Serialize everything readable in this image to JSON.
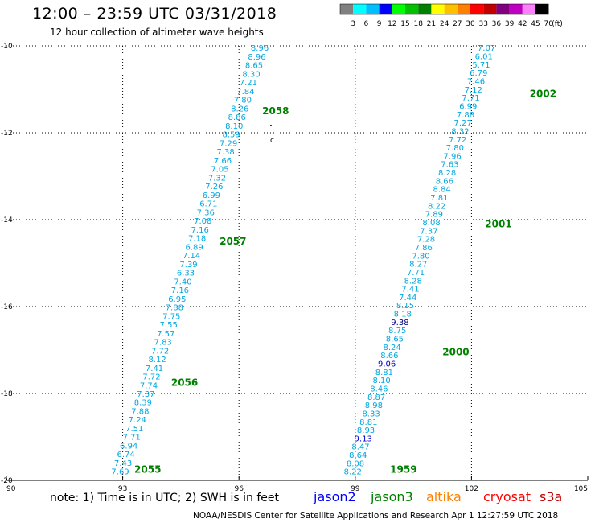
{
  "header": {
    "title": "12:00 – 23:59 UTC 03/31/2018",
    "subtitle": "12 hour collection of altimeter wave heights"
  },
  "colorbar": {
    "unit": "(ft)",
    "ticks": [
      "3",
      "6",
      "9",
      "12",
      "15",
      "18",
      "21",
      "24",
      "27",
      "30",
      "33",
      "36",
      "39",
      "42",
      "45",
      "70"
    ],
    "colors": [
      "#808080",
      "#00ffff",
      "#00bfff",
      "#0000ff",
      "#00ff00",
      "#00c000",
      "#008000",
      "#ffff00",
      "#ffc000",
      "#ff8000",
      "#ff0000",
      "#c00000",
      "#800080",
      "#c000c0",
      "#ff80ff",
      "#000000"
    ]
  },
  "note": "note: 1) Time is in UTC; 2) SWH is in feet",
  "satellites": [
    {
      "name": "jason2",
      "color": "#0000ff"
    },
    {
      "name": "jason3",
      "color": "#008000"
    },
    {
      "name": "altika",
      "color": "#ff8000"
    },
    {
      "name": "cryosat",
      "color": "#ff0000"
    },
    {
      "name": "s3a",
      "color": "#c00000"
    }
  ],
  "footer": "NOAA/NESDIS Center for Satellite Applications and Research    Apr  1 12:27:59 UTC 2018",
  "chart_data": {
    "type": "scatter",
    "xlim": [
      90,
      105
    ],
    "ylim": [
      -20,
      -10
    ],
    "x_ticks": [
      90,
      93,
      96,
      99,
      102,
      105
    ],
    "y_ticks": [
      -10,
      -12,
      -14,
      -16,
      -18,
      -20
    ],
    "x_tick_labels": [
      "90",
      "93",
      "96",
      "99",
      "102",
      "105"
    ],
    "y_tick_labels": [
      "-10",
      "-12",
      "-14",
      "-16",
      "-18",
      "-20"
    ],
    "grid": true,
    "tracks": [
      {
        "lon_start": 92.75,
        "lat_start": -19.8,
        "lon_end": 96.35,
        "lat_end": -10.05,
        "values": [
          "7.69",
          "7.43",
          "6.74",
          "6.94",
          "7.71",
          "7.51",
          "7.24",
          "7.88",
          "8.39",
          "7.37",
          "7.74",
          "7.72",
          "7.41",
          "8.12",
          "7.72",
          "7.83",
          "7.57",
          "7.55",
          "7.75",
          "7.88",
          "6.95",
          "7.16",
          "7.40",
          "6.33",
          "7.39",
          "7.14",
          "6.89",
          "7.18",
          "7.16",
          "7.08",
          "7.36",
          "6.71",
          "6.99",
          "7.26",
          "7.32",
          "7.05",
          "7.66",
          "7.38",
          "7.29",
          "8.59",
          "8.10",
          "8.86",
          "8.26",
          "7.80",
          "7.84",
          "7.21",
          "8.30",
          "8.65",
          "8.96",
          "8.96"
        ],
        "value_colors": {},
        "time_labels": [
          {
            "text": "2055",
            "lat": -19.75,
            "lon": 93.3
          },
          {
            "text": "2056",
            "lat": -17.75,
            "lon": 94.25
          },
          {
            "text": "2057",
            "lat": -14.5,
            "lon": 95.5
          },
          {
            "text": "2058",
            "lat": -11.5,
            "lon": 96.6
          }
        ]
      },
      {
        "lon_start": 98.75,
        "lat_start": -19.8,
        "lon_end": 102.2,
        "lat_end": -10.05,
        "values": [
          "8.22",
          "8.08",
          "8.64",
          "8.47",
          "9.13",
          "8.93",
          "8.81",
          "8.33",
          "8.98",
          "8.87",
          "8.46",
          "8.10",
          "8.81",
          "9.06",
          "8.66",
          "8.24",
          "8.65",
          "8.75",
          "9.38",
          "8.18",
          "8.15",
          "7.44",
          "7.41",
          "8.28",
          "7.71",
          "8.27",
          "7.80",
          "7.86",
          "7.28",
          "7.37",
          "8.08",
          "7.89",
          "8.22",
          "7.81",
          "8.84",
          "8.66",
          "8.28",
          "7.63",
          "7.96",
          "7.80",
          "7.72",
          "8.32",
          "7.27",
          "7.88",
          "6.99",
          "7.71",
          "7.12",
          "7.46",
          "6.79",
          "5.71",
          "6.01",
          "7.07"
        ],
        "value_colors": {
          "4": "#0000cc",
          "13": "#0000cc",
          "18": "#000080"
        },
        "time_labels": [
          {
            "text": "1959",
            "lat": -19.75,
            "lon": 99.9
          },
          {
            "text": "2000",
            "lat": -17.05,
            "lon": 101.25
          },
          {
            "text": "2001",
            "lat": -14.1,
            "lon": 102.35
          },
          {
            "text": "2002",
            "lat": -11.1,
            "lon": 103.5
          }
        ]
      }
    ]
  }
}
